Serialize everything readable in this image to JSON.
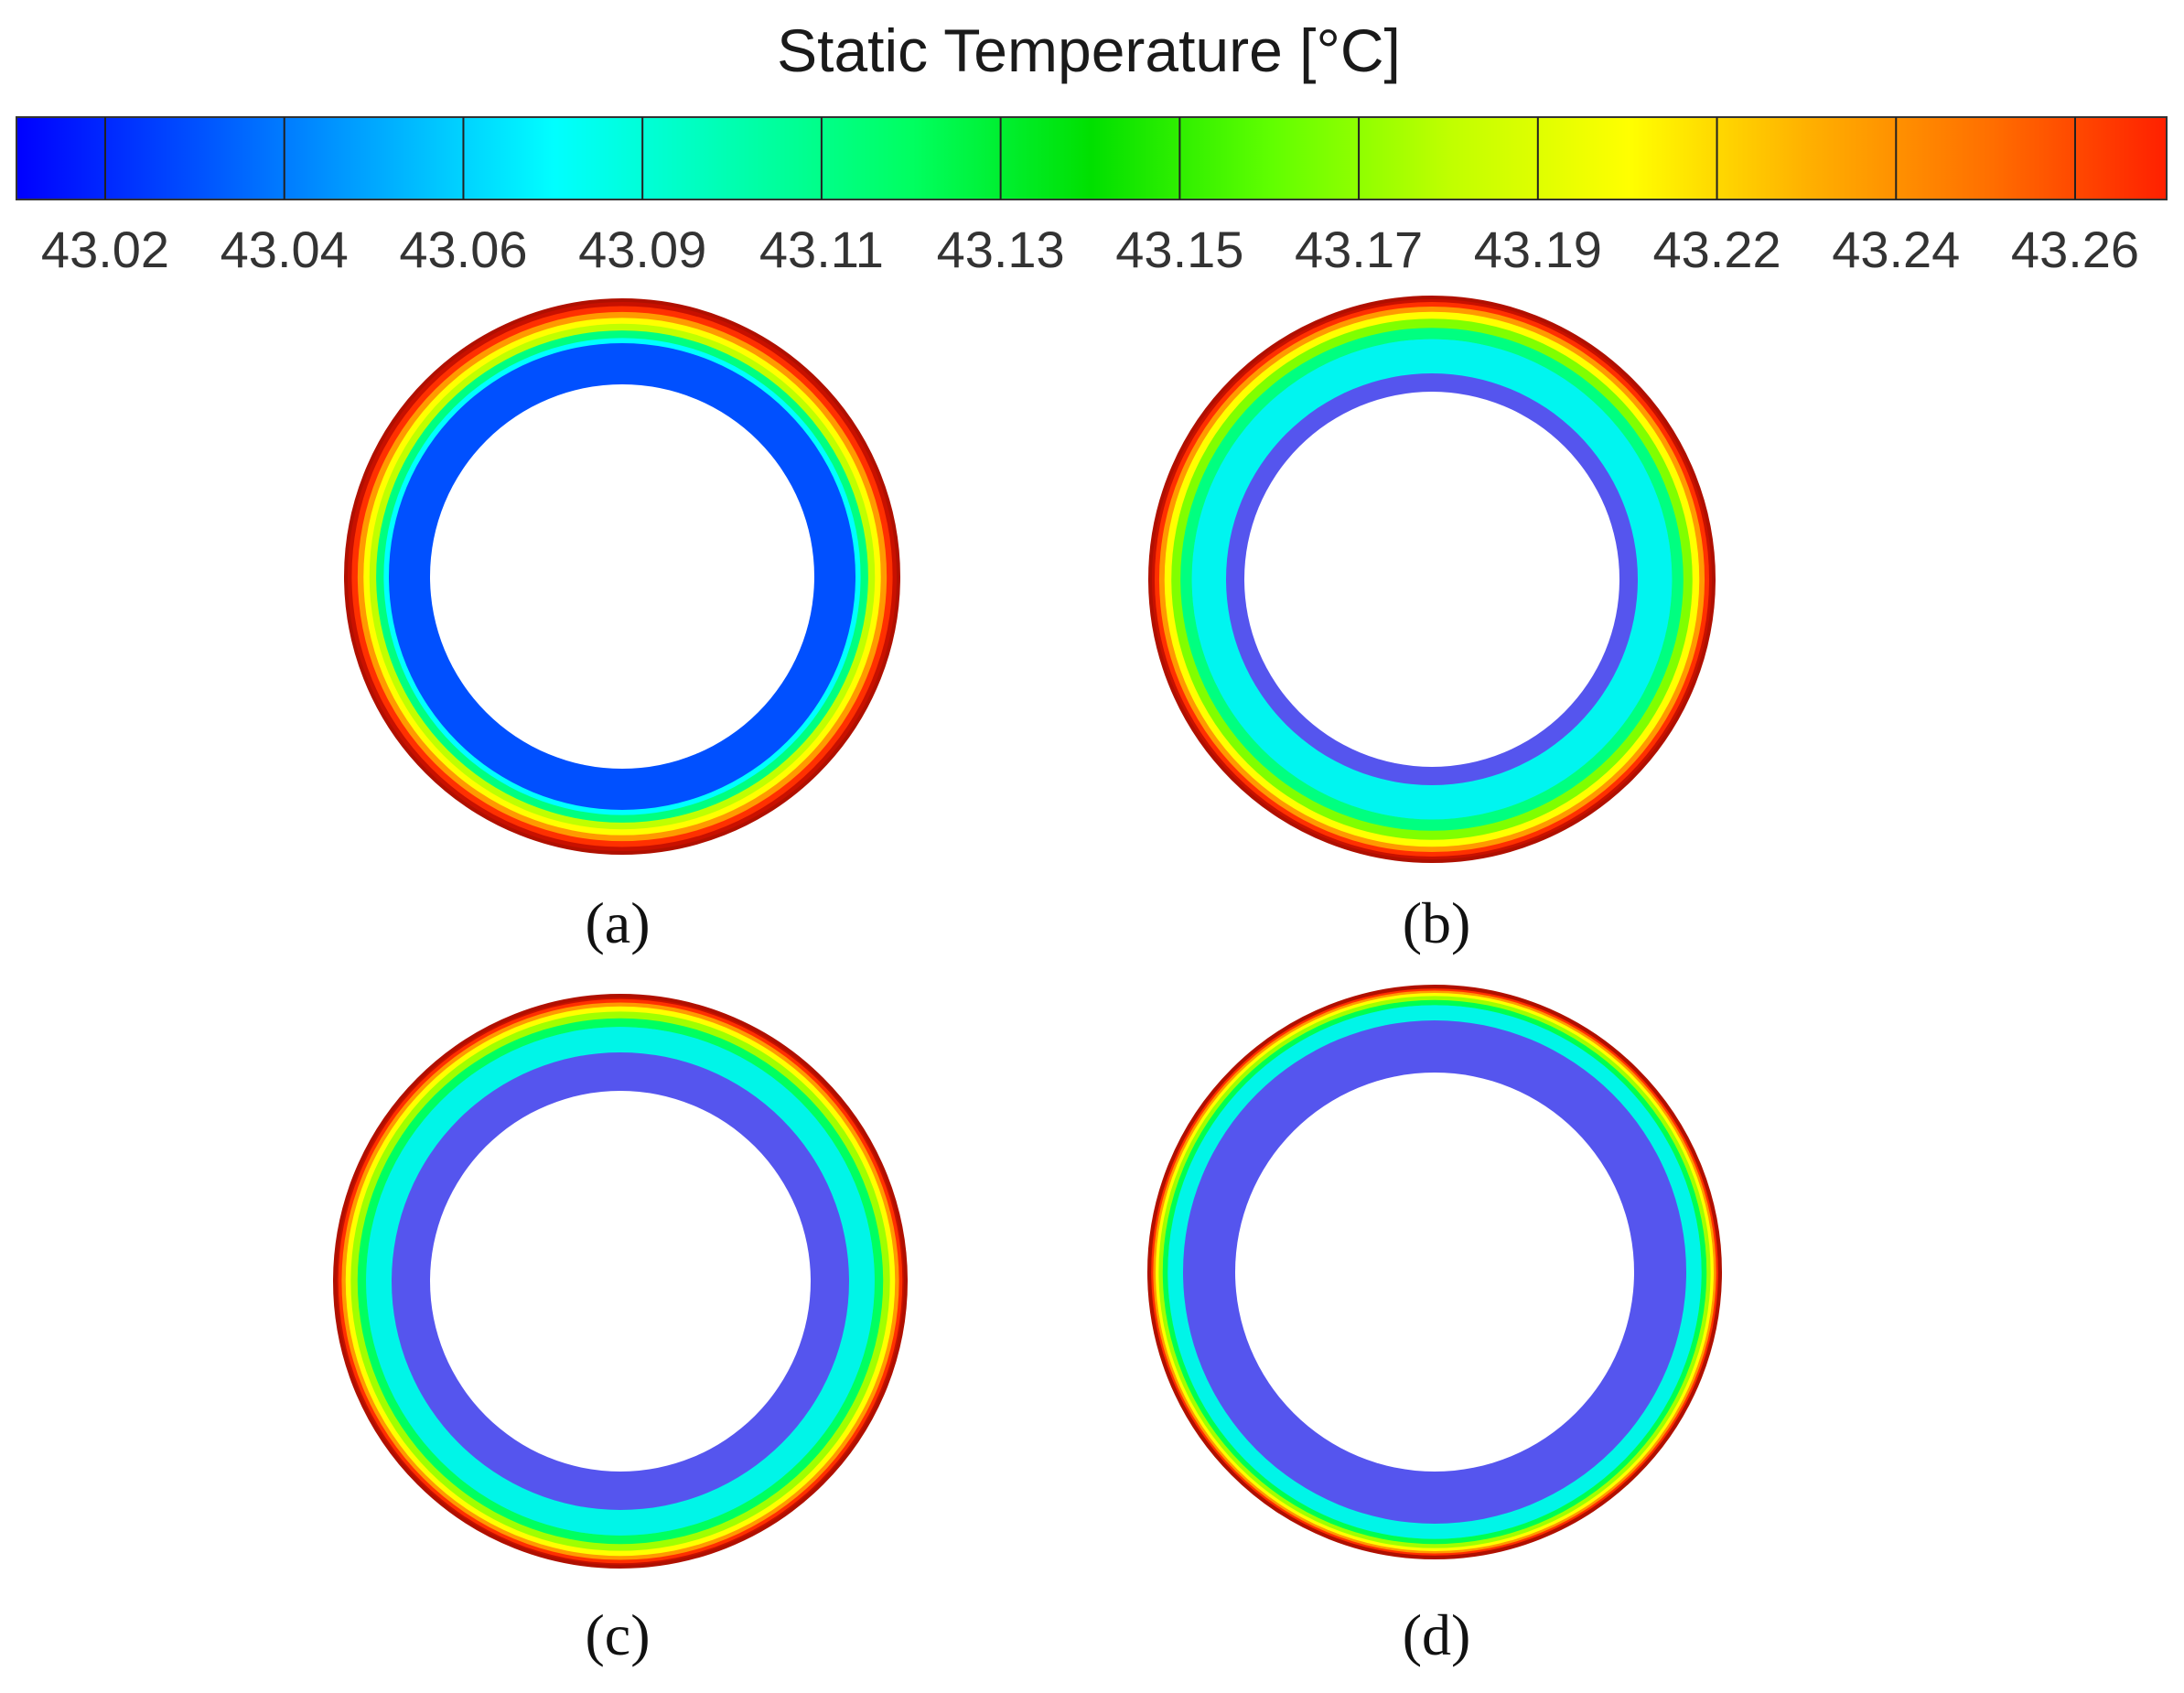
{
  "legend": {
    "title": "Static Temperature [°C]",
    "ticks": [
      "43.02",
      "43.04",
      "43.06",
      "43.09",
      "43.11",
      "43.13",
      "43.15",
      "43.17",
      "43.19",
      "43.22",
      "43.24",
      "43.26"
    ],
    "gradient_stops": [
      "#0000ff",
      "#0050ff",
      "#00a8ff",
      "#00ffff",
      "#00ffb0",
      "#00ff60",
      "#00e000",
      "#60ff00",
      "#c0ff00",
      "#ffff00",
      "#ffb000",
      "#ff7000",
      "#ff2000"
    ],
    "colormap": "rainbow"
  },
  "panels": [
    {
      "label": "(a)",
      "inner_color": "#0050ff",
      "bands": [
        "#0050ff",
        "#0078ff",
        "#00b4ff",
        "#00ffff",
        "#00ff80",
        "#c0ff00",
        "#ffff00",
        "#ff9a00",
        "#ff3000",
        "#c81000"
      ]
    },
    {
      "label": "(b)",
      "inner_color": "#5555ee",
      "bands": [
        "#00f5f0",
        "#00ffd0",
        "#00ff80",
        "#80ff00",
        "#ffff00",
        "#ff9a00",
        "#ff3000",
        "#c81000"
      ]
    },
    {
      "label": "(c)",
      "inner_color": "#5555ee",
      "bands": [
        "#00f5e8",
        "#00ffb0",
        "#00ff60",
        "#a0ff00",
        "#ffff00",
        "#ff9a00",
        "#ff3000",
        "#c81000"
      ]
    },
    {
      "label": "(d)",
      "inner_color": "#5555ee",
      "bands": [
        "#00f5e8",
        "#00ffa0",
        "#00ff50",
        "#a0ff00",
        "#ffff00",
        "#ff9a00",
        "#ff3000",
        "#c81000"
      ]
    }
  ]
}
